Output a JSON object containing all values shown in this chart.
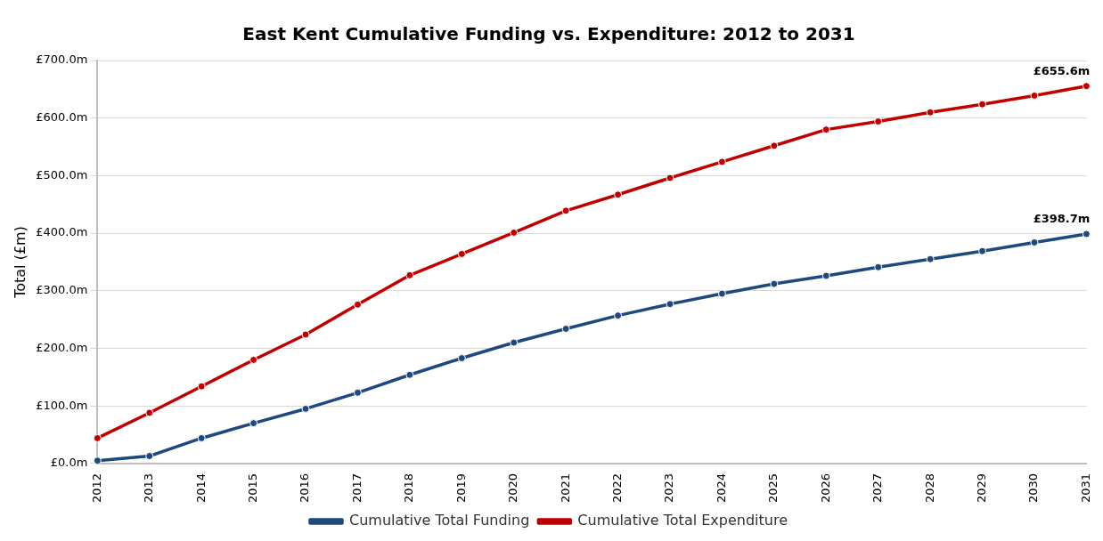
{
  "chart_data": {
    "type": "line",
    "title": "East Kent Cumulative Funding vs. Expenditure: 2012 to 2031",
    "ylabel": "Total (£m)",
    "categories": [
      "2012",
      "2013",
      "2014",
      "2015",
      "2016",
      "2017",
      "2018",
      "2019",
      "2020",
      "2021",
      "2022",
      "2023",
      "2024",
      "2025",
      "2026",
      "2027",
      "2028",
      "2029",
      "2030",
      "2031"
    ],
    "series": [
      {
        "name": "Cumulative Total Funding",
        "color": "#1f497d",
        "values": [
          5,
          13,
          44,
          70,
          95,
          123,
          154,
          183,
          210,
          234,
          257,
          277,
          295,
          312,
          326,
          341,
          355,
          369,
          384,
          398.7
        ],
        "value_labels": [
          null,
          null,
          null,
          null,
          null,
          null,
          null,
          null,
          null,
          null,
          null,
          null,
          null,
          null,
          null,
          null,
          null,
          null,
          null,
          "£398.7m"
        ]
      },
      {
        "name": "Cumulative Total Expenditure",
        "color": "#c00000",
        "values": [
          44,
          88,
          134,
          180,
          224,
          276,
          327,
          364,
          401,
          439,
          467,
          496,
          524,
          552,
          580,
          594,
          610,
          624,
          639,
          655.6
        ],
        "value_labels": [
          null,
          null,
          null,
          null,
          null,
          null,
          null,
          null,
          null,
          null,
          null,
          null,
          null,
          null,
          null,
          null,
          null,
          null,
          null,
          "£655.6m"
        ]
      }
    ],
    "ylim": [
      0,
      700
    ],
    "yticks": [
      {
        "value": 0,
        "label": "£0.0m"
      },
      {
        "value": 100,
        "label": "£100.0m"
      },
      {
        "value": 200,
        "label": "£200.0m"
      },
      {
        "value": 300,
        "label": "£300.0m"
      },
      {
        "value": 400,
        "label": "£400.0m"
      },
      {
        "value": 500,
        "label": "£500.0m"
      },
      {
        "value": 600,
        "label": "£600.0m"
      },
      {
        "value": 700,
        "label": "£700.0m"
      }
    ],
    "grid": "y",
    "legend": "bottom",
    "marker": "circle",
    "line_style": "solid"
  }
}
